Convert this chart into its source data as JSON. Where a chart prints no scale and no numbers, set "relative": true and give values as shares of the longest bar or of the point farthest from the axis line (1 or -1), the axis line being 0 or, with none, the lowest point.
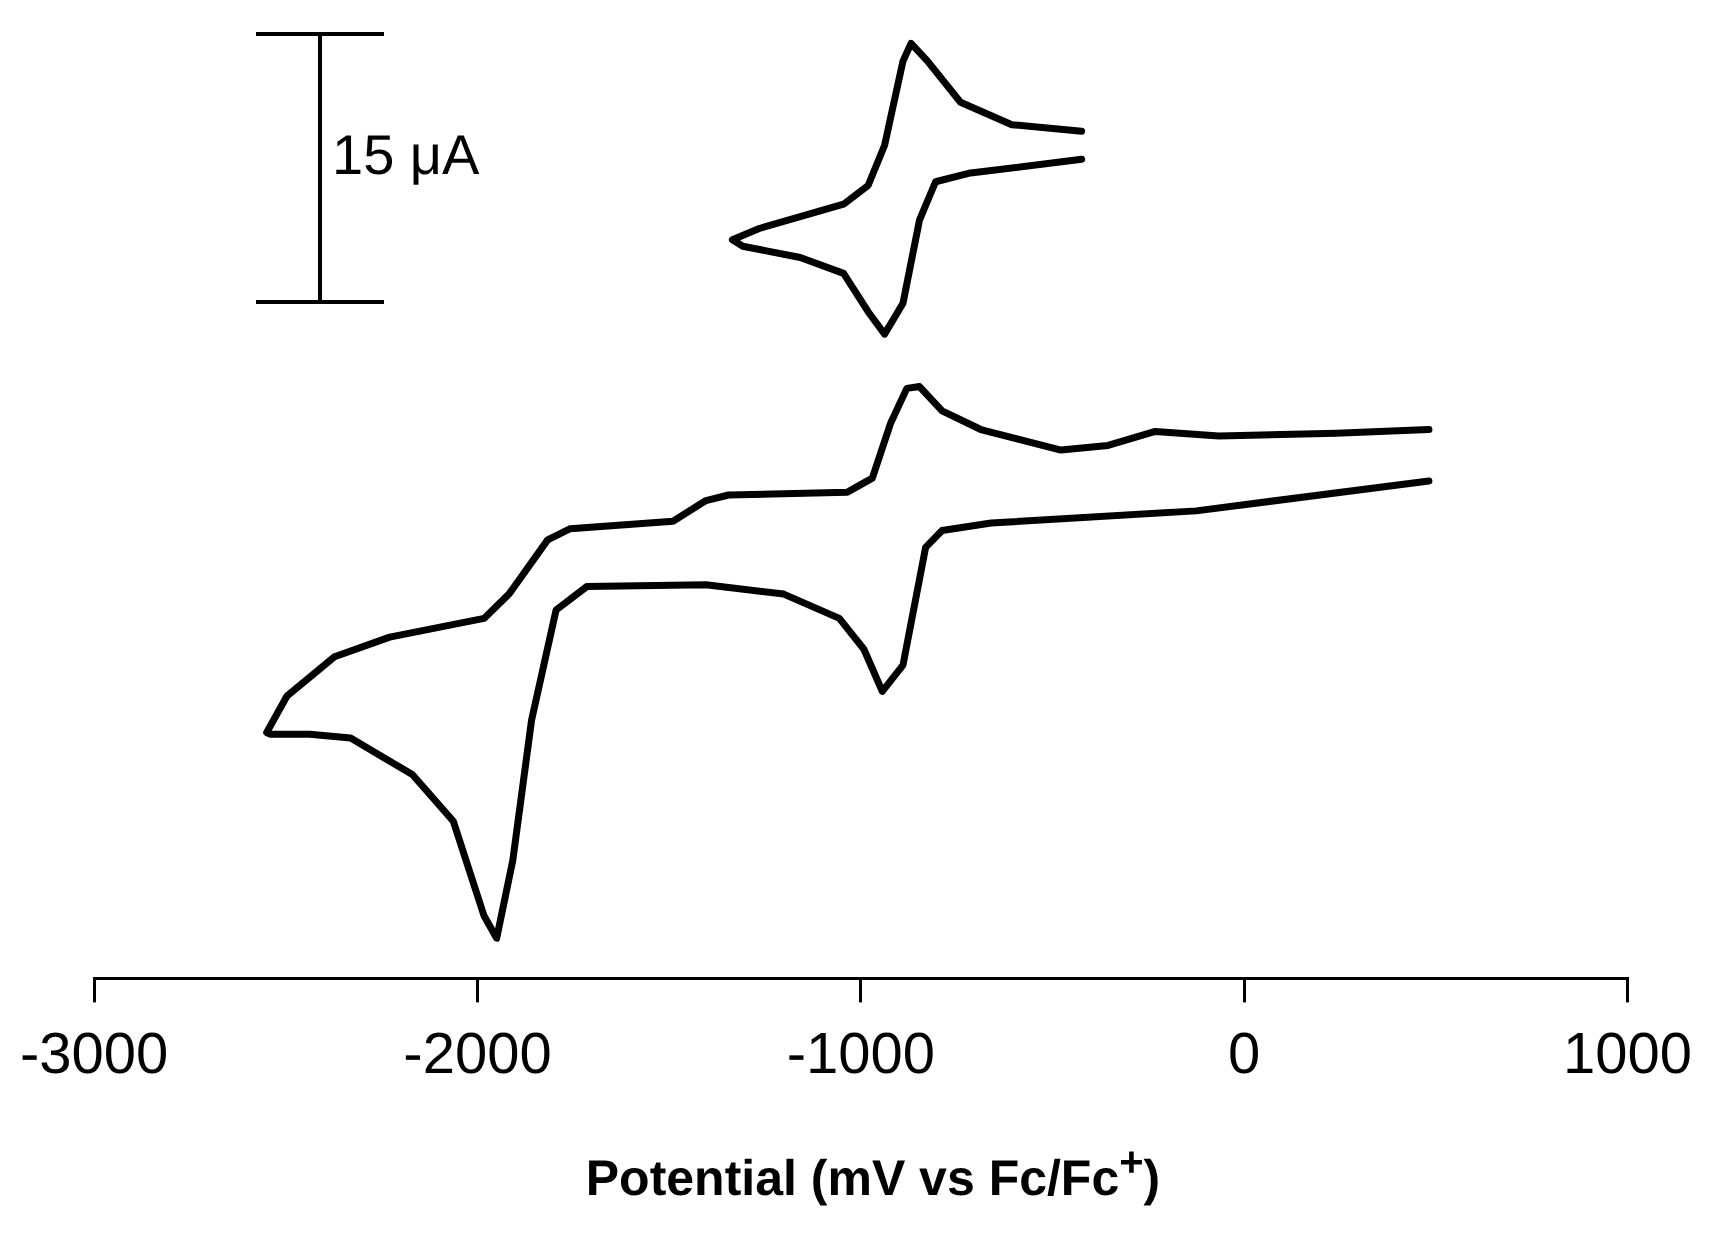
{
  "chart_data": {
    "type": "line",
    "relative": true,
    "xlabel": "Potential (mV vs Fc/Fc$^{+}$)",
    "xlim": [
      -3000,
      1000
    ],
    "xticks": [
      -3000,
      -2000,
      -1000,
      0,
      1000
    ],
    "marker": "none",
    "line_style": "solid",
    "legend": false,
    "tick_labels": "x",
    "annotations": [
      "15 μA"
    ],
    "series": [
      {
        "color": "#000000",
        "x": [
          482,
          -125,
          -660,
          -788,
          -831,
          -890,
          -944,
          -992,
          -1056,
          -1201,
          -1404,
          -1715,
          -1795,
          -1859,
          -1908,
          -1950,
          -1983,
          -2063,
          -2170,
          -2331,
          -2438,
          -2540,
          -2550,
          -2497,
          -2373,
          -2229,
          -1983,
          -1918,
          -1817,
          -1758,
          -1490,
          -1404,
          -1345,
          -1035,
          -970,
          -922,
          -880,
          -847,
          -788,
          -687,
          -478,
          -355,
          -232,
          -66,
          240,
          482
        ],
        "values": [
          0.532,
          0.5,
          0.487,
          0.479,
          0.461,
          0.335,
          0.307,
          0.352,
          0.385,
          0.411,
          0.421,
          0.419,
          0.394,
          0.276,
          0.126,
          0.043,
          0.067,
          0.168,
          0.218,
          0.257,
          0.261,
          0.261,
          0.263,
          0.302,
          0.344,
          0.365,
          0.385,
          0.411,
          0.469,
          0.481,
          0.489,
          0.511,
          0.517,
          0.52,
          0.535,
          0.594,
          0.631,
          0.633,
          0.607,
          0.587,
          0.565,
          0.57,
          0.585,
          0.58,
          0.583,
          0.587
        ]
      },
      {
        "color": "#000000",
        "x": [
          -424,
          -719,
          -805,
          -847,
          -890,
          -938,
          -981,
          -1045,
          -1158,
          -1308,
          -1335,
          -1265,
          -1045,
          -981,
          -938,
          -890,
          -869,
          -826,
          -740,
          -606,
          -424
        ],
        "values": [
          0.876,
          0.861,
          0.852,
          0.811,
          0.722,
          0.689,
          0.713,
          0.754,
          0.771,
          0.783,
          0.79,
          0.802,
          0.828,
          0.848,
          0.891,
          0.981,
          1,
          0.981,
          0.937,
          0.913,
          0.906
        ]
      }
    ]
  }
}
